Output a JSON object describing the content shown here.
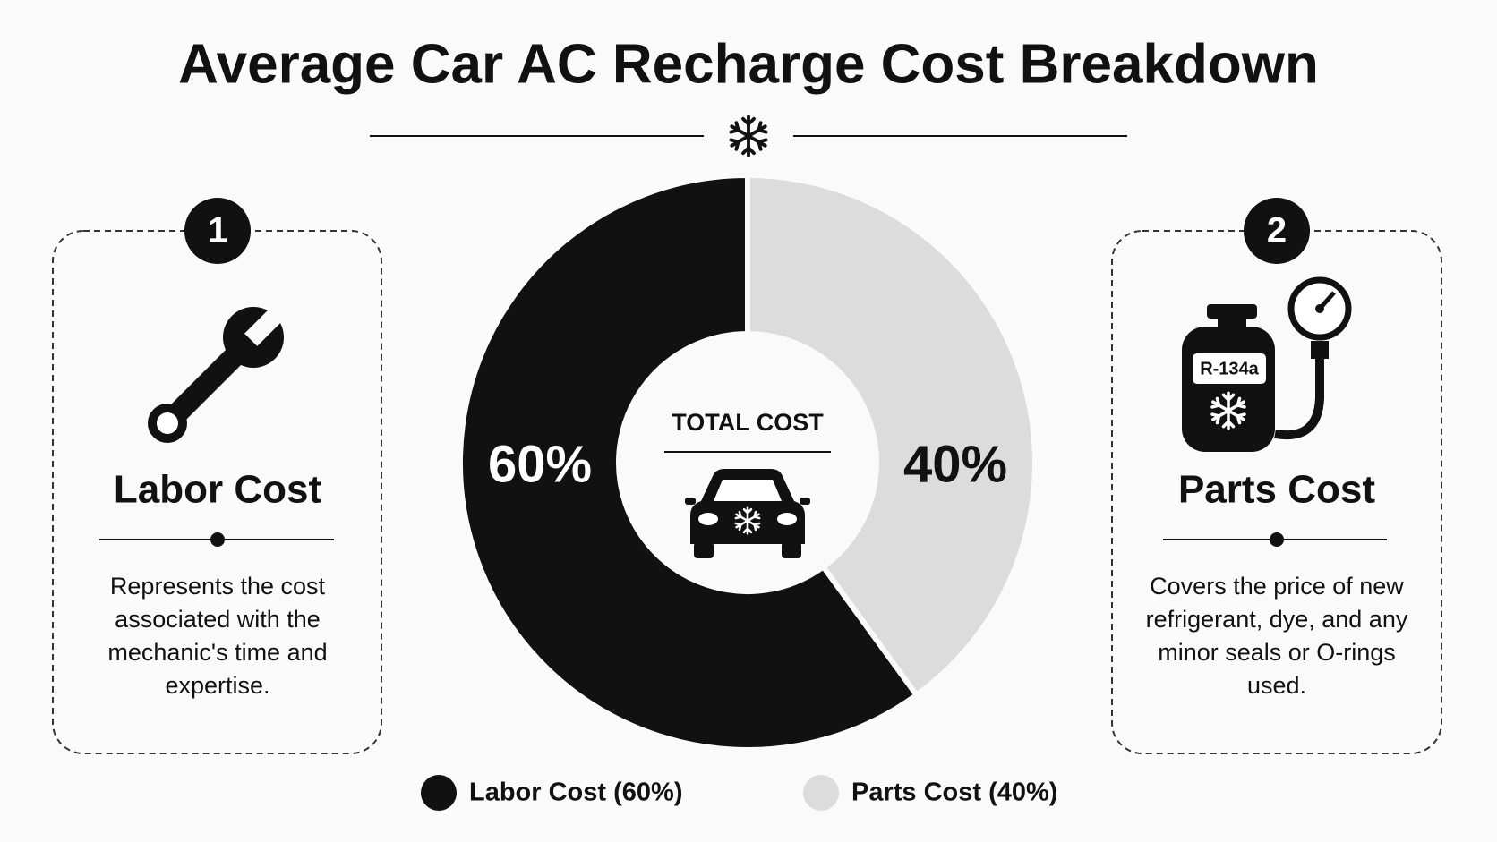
{
  "chart_data": {
    "type": "pie",
    "donut": true,
    "title": "Average Car AC Recharge Cost Breakdown",
    "center_label": "TOTAL COST",
    "categories": [
      "Labor Cost",
      "Parts Cost"
    ],
    "values": [
      60,
      40
    ],
    "value_labels": [
      "60%",
      "40%"
    ],
    "colors": [
      "#111111",
      "#dcdcdc"
    ],
    "legend": [
      "Labor Cost (60%)",
      "Parts Cost (40%)"
    ]
  },
  "cards": [
    {
      "number": "1",
      "description": [
        "Represents the cost",
        "associated with the",
        "mechanic's time and",
        "expertise."
      ]
    },
    {
      "number": "2",
      "icon_label": "R-134a",
      "description": [
        "Covers the price of new",
        "refrigerant, dye, and any",
        "minor seals or O-rings",
        "used."
      ]
    }
  ]
}
